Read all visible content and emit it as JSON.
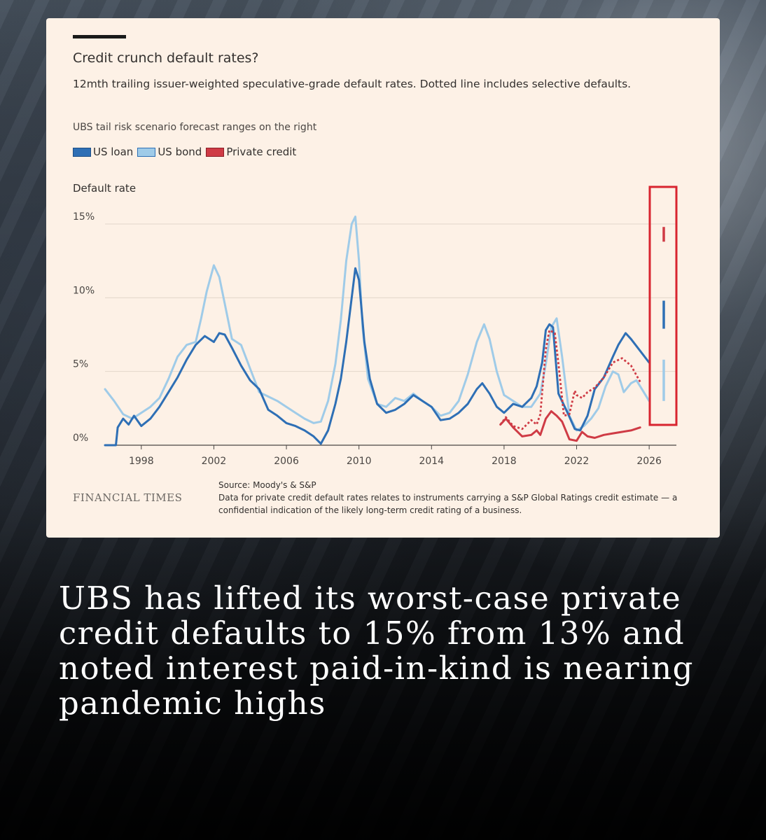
{
  "chart_data": {
    "type": "line",
    "title": "Credit crunch default rates?",
    "subtitle": "12mth trailing issuer-weighted speculative-grade default rates. Dotted line includes selective defaults.",
    "note": "UBS tail risk scenario forecast ranges on the right",
    "ylabel": "Default rate",
    "y_ticks": [
      "0%",
      "5%",
      "10%",
      "15%"
    ],
    "x_ticks": [
      "1998",
      "2002",
      "2006",
      "2010",
      "2014",
      "2018",
      "2022",
      "2026"
    ],
    "xlim": [
      1996.0,
      2027.5
    ],
    "ylim": [
      0,
      15
    ],
    "legend_placement": "top-left",
    "colors": {
      "us_loan": "#2e6fb5",
      "us_bond": "#9fcbe8",
      "private_credit": "#cf3b45",
      "highlight_box": "#d8242f"
    },
    "series": [
      {
        "name": "US loan",
        "key": "us_loan",
        "x": [
          1996.0,
          1996.6,
          1996.7,
          1997.0,
          1997.3,
          1997.6,
          1998.0,
          1998.5,
          1999.0,
          1999.5,
          2000.0,
          2000.5,
          2001.0,
          2001.5,
          2002.0,
          2002.3,
          2002.6,
          2003.0,
          2003.5,
          2004.0,
          2004.5,
          2005.0,
          2005.5,
          2006.0,
          2006.5,
          2007.0,
          2007.5,
          2007.9,
          2008.3,
          2008.7,
          2009.0,
          2009.3,
          2009.6,
          2009.8,
          2010.0,
          2010.3,
          2010.6,
          2011.0,
          2011.5,
          2012.0,
          2012.5,
          2013.0,
          2013.5,
          2014.0,
          2014.5,
          2015.0,
          2015.5,
          2016.0,
          2016.5,
          2016.8,
          2017.2,
          2017.6,
          2018.0,
          2018.5,
          2019.0,
          2019.5,
          2019.8,
          2020.1,
          2020.3,
          2020.5,
          2020.7,
          2021.0,
          2021.5,
          2021.9,
          2022.2,
          2022.6,
          2023.0,
          2023.5,
          2024.0,
          2024.3,
          2024.7,
          2025.0,
          2025.5,
          2026.0
        ],
        "y": [
          0,
          0,
          1.2,
          1.8,
          1.4,
          2.0,
          1.3,
          1.8,
          2.6,
          3.6,
          4.6,
          5.8,
          6.8,
          7.4,
          7.0,
          7.6,
          7.5,
          6.6,
          5.4,
          4.4,
          3.8,
          2.4,
          2.0,
          1.5,
          1.3,
          1.0,
          0.6,
          0.1,
          1.0,
          2.8,
          4.5,
          7.0,
          10.0,
          12.0,
          11.2,
          7.0,
          4.5,
          2.8,
          2.2,
          2.4,
          2.8,
          3.4,
          3.0,
          2.6,
          1.7,
          1.8,
          2.2,
          2.8,
          3.8,
          4.2,
          3.5,
          2.6,
          2.2,
          2.8,
          2.6,
          3.2,
          4.0,
          5.6,
          7.8,
          8.2,
          8.0,
          3.5,
          2.2,
          1.1,
          1.0,
          2.0,
          3.8,
          4.6,
          6.0,
          6.8,
          7.6,
          7.2,
          6.4,
          5.6
        ]
      },
      {
        "name": "US bond",
        "key": "us_bond",
        "x": [
          1996.0,
          1996.5,
          1997.0,
          1997.5,
          1998.0,
          1998.5,
          1999.0,
          1999.5,
          2000.0,
          2000.5,
          2001.0,
          2001.3,
          2001.6,
          2002.0,
          2002.3,
          2002.6,
          2003.0,
          2003.5,
          2004.0,
          2004.5,
          2005.0,
          2005.5,
          2006.0,
          2006.5,
          2007.0,
          2007.5,
          2007.9,
          2008.3,
          2008.7,
          2009.0,
          2009.3,
          2009.6,
          2009.8,
          2010.0,
          2010.2,
          2010.5,
          2011.0,
          2011.5,
          2012.0,
          2012.5,
          2013.0,
          2013.5,
          2014.0,
          2014.5,
          2015.0,
          2015.5,
          2016.0,
          2016.5,
          2016.9,
          2017.2,
          2017.6,
          2018.0,
          2018.5,
          2019.0,
          2019.5,
          2020.0,
          2020.3,
          2020.6,
          2020.9,
          2021.2,
          2021.6,
          2022.0,
          2022.4,
          2022.8,
          2023.2,
          2023.6,
          2024.0,
          2024.3,
          2024.6,
          2025.0,
          2025.3,
          2025.6,
          2026.0
        ],
        "y": [
          3.8,
          3.0,
          2.1,
          1.8,
          2.2,
          2.6,
          3.2,
          4.5,
          6.0,
          6.8,
          7.0,
          8.6,
          10.4,
          12.2,
          11.4,
          9.6,
          7.2,
          6.8,
          5.2,
          3.6,
          3.3,
          3.0,
          2.6,
          2.2,
          1.8,
          1.5,
          1.6,
          3.0,
          5.5,
          8.5,
          12.5,
          15.0,
          15.5,
          12.5,
          8.0,
          4.5,
          2.8,
          2.6,
          3.2,
          3.0,
          3.5,
          3.0,
          2.6,
          2.0,
          2.2,
          3.0,
          4.8,
          7.0,
          8.2,
          7.2,
          5.0,
          3.4,
          3.0,
          2.6,
          2.6,
          3.5,
          5.5,
          8.0,
          8.6,
          6.0,
          2.0,
          1.0,
          1.3,
          1.8,
          2.5,
          4.0,
          5.0,
          4.8,
          3.6,
          4.2,
          4.4,
          3.8,
          3.0
        ]
      },
      {
        "name": "Private credit",
        "key": "private_credit",
        "x": [
          2017.8,
          2018.1,
          2018.5,
          2019.0,
          2019.5,
          2019.8,
          2020.0,
          2020.3,
          2020.6,
          2020.9,
          2021.2,
          2021.6,
          2022.0,
          2022.3,
          2022.6,
          2023.0,
          2023.5,
          2024.0,
          2024.5,
          2025.0,
          2025.5
        ],
        "y": [
          1.4,
          1.8,
          1.2,
          0.6,
          0.7,
          1.0,
          0.7,
          1.8,
          2.3,
          2.0,
          1.6,
          0.4,
          0.3,
          0.9,
          0.6,
          0.5,
          0.7,
          0.8,
          0.9,
          1.0,
          1.2
        ]
      },
      {
        "name": "Private credit (incl. selective defaults)",
        "key": "private_credit_selective",
        "dotted": true,
        "x": [
          2017.8,
          2018.1,
          2018.5,
          2019.0,
          2019.5,
          2019.8,
          2020.0,
          2020.3,
          2020.5,
          2020.8,
          2021.0,
          2021.3,
          2021.6,
          2021.9,
          2022.0,
          2022.3,
          2022.6,
          2023.0,
          2023.5,
          2024.0,
          2024.5,
          2025.0,
          2025.5
        ],
        "y": [
          1.4,
          1.9,
          1.3,
          1.1,
          1.7,
          1.4,
          2.1,
          6.5,
          7.8,
          7.6,
          5.5,
          2.0,
          2.1,
          3.7,
          3.4,
          3.2,
          3.6,
          3.9,
          4.6,
          5.6,
          5.9,
          5.4,
          4.3
        ]
      }
    ],
    "forecast_ranges": [
      {
        "series": "Private credit",
        "key": "private_credit",
        "low": 13.8,
        "high": 14.8
      },
      {
        "series": "US loan",
        "key": "us_loan",
        "low": 7.9,
        "high": 9.8
      },
      {
        "series": "US bond",
        "key": "us_bond",
        "low": 3.0,
        "high": 5.8
      }
    ],
    "grid": true
  },
  "footer": {
    "brand": "FINANCIAL TIMES",
    "source": "Source: Moody's & S&P",
    "note": "Data for private credit default rates relates to instruments carrying a S&P Global Ratings credit estimate — a confidential indication of the likely long-term credit rating of a business."
  },
  "headline": "UBS has lifted its worst-case private credit defaults to 15% from 13% and noted interest paid-in-kind is nearing pandemic highs"
}
